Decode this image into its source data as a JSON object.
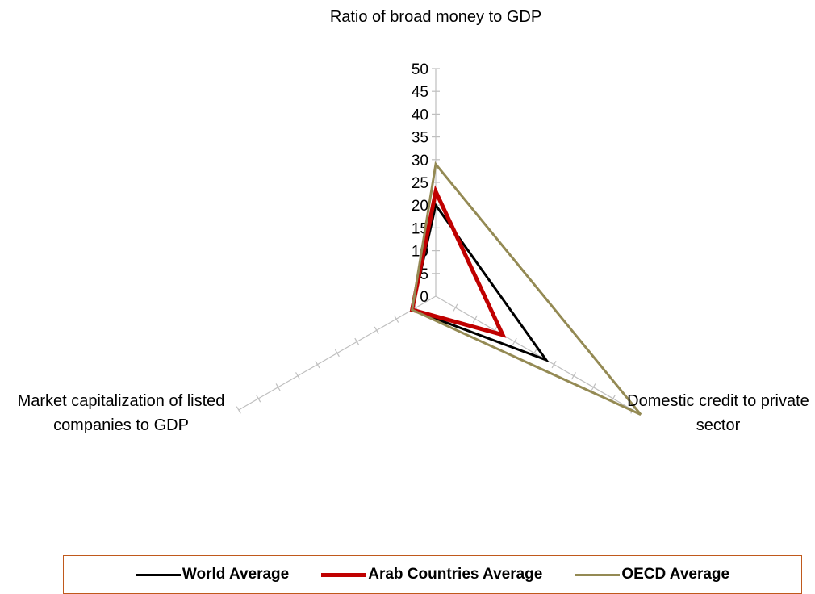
{
  "chart_data": {
    "type": "radar",
    "axes": [
      "Ratio of broad money to GDP",
      "Domestic credit to private sector",
      "Market capitalization of listed companies to GDP"
    ],
    "tick_labels": [
      "0",
      "5",
      "10",
      "15",
      "20",
      "25",
      "30",
      "35",
      "40",
      "45",
      "50"
    ],
    "range": [
      0,
      50
    ],
    "series": [
      {
        "name": "World Average",
        "values": [
          20,
          28,
          6
        ],
        "color": "#000000"
      },
      {
        "name": "Arab Countries Average",
        "values": [
          23,
          17,
          6
        ],
        "color": "#c00000"
      },
      {
        "name": "OECD Average",
        "values": [
          29,
          52,
          6
        ],
        "color": "#948a54"
      }
    ],
    "legend_position": "bottom",
    "grid": false
  }
}
